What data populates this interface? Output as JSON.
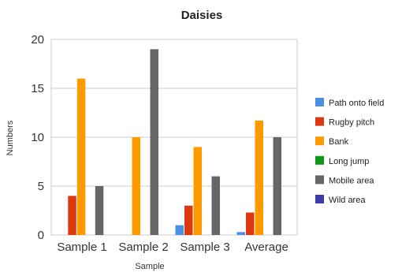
{
  "chart_data": {
    "type": "bar",
    "title": "Daisies",
    "xlabel": "Sample",
    "ylabel": "Numbers",
    "ylim": [
      0,
      20
    ],
    "yticks": [
      0,
      5,
      10,
      15,
      20
    ],
    "grid": true,
    "legend_position": "right",
    "categories": [
      "Sample 1",
      "Sample 2",
      "Sample 3",
      "Average"
    ],
    "series": [
      {
        "name": "Path onto field",
        "color": "#4a90e2",
        "values": [
          0,
          0,
          1,
          0.3
        ]
      },
      {
        "name": "Rugby pitch",
        "color": "#dc3912",
        "values": [
          4,
          0,
          3,
          2.3
        ]
      },
      {
        "name": "Bank",
        "color": "#ff9900",
        "values": [
          16,
          10,
          9,
          11.7
        ]
      },
      {
        "name": "Long jump",
        "color": "#109618",
        "values": [
          0,
          0,
          0,
          0
        ]
      },
      {
        "name": "Mobile area",
        "color": "#666666",
        "values": [
          5,
          19,
          6,
          10
        ]
      },
      {
        "name": "Wild area",
        "color": "#3b3eac",
        "values": [
          0,
          0,
          0,
          0
        ]
      }
    ]
  }
}
